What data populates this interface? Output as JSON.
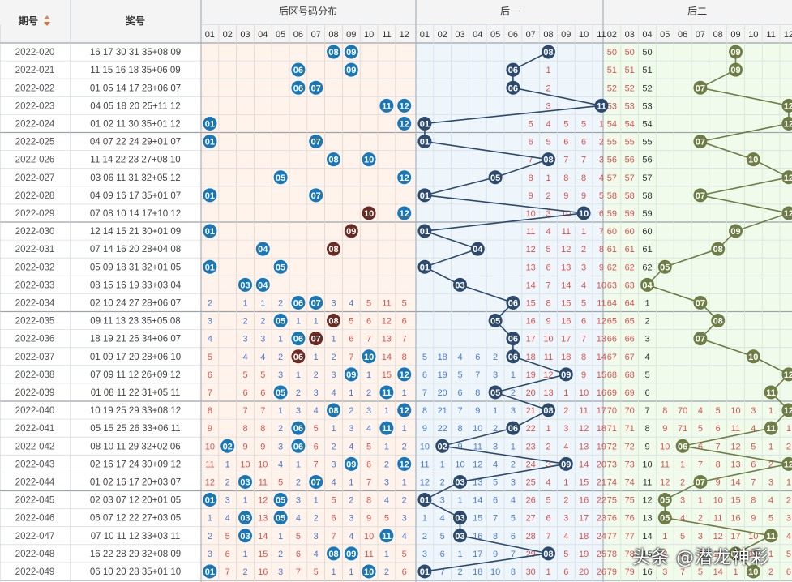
{
  "header": {
    "col_period": "期号",
    "col_numbers": "奖号",
    "group_back": "后区号码分布",
    "group_h1": "后一",
    "group_h2": "后二"
  },
  "back_labels": [
    "01",
    "02",
    "03",
    "04",
    "05",
    "06",
    "07",
    "08",
    "09",
    "10",
    "11",
    "12"
  ],
  "h1_labels": [
    "01",
    "02",
    "03",
    "04",
    "05",
    "06",
    "07",
    "08",
    "09",
    "10",
    "11"
  ],
  "h2_labels": [
    "02",
    "03",
    "04",
    "05",
    "06",
    "07",
    "08",
    "09",
    "10",
    "11",
    "12"
  ],
  "watermark": "头条 @潜龙神彩",
  "colors": {
    "ball_blue": "#1777b8",
    "ball_dark": "#2c4a6e",
    "ball_maroon": "#6b2a22",
    "ball_olive": "#6e7d44",
    "line_h1": "#2c4a6e",
    "line_h2": "#6e7d44",
    "miss_red": "#d9534f",
    "miss_blue": "#4a7bd1",
    "bg_back": "#fff3ec",
    "bg_h1": "#eef6fb",
    "bg_h2": "#f1fbec"
  },
  "chart_data": {
    "type": "table",
    "periods": [
      "2022-020",
      "2022-021",
      "2022-022",
      "2022-023",
      "2022-024",
      "2022-025",
      "2022-026",
      "2022-027",
      "2022-028",
      "2022-029",
      "2022-030",
      "2022-031",
      "2022-032",
      "2022-033",
      "2022-034",
      "2022-035",
      "2022-036",
      "2022-037",
      "2022-038",
      "2022-039",
      "2022-040",
      "2022-041",
      "2022-042",
      "2022-043",
      "2022-044",
      "2022-045",
      "2022-046",
      "2022-047",
      "2022-048",
      "2022-049"
    ],
    "draws": [
      "16 17 30 31 35+08 09",
      "11 15 16 18 35+06 09",
      "01 05 14 17 28+06 07",
      "04 05 18 20 25+11 12",
      "01 02 11 30 35+01 12",
      "04 07 22 24 29+01 07",
      "11 14 22 23 27+08 10",
      "03 06 11 31 32+05 12",
      "04 09 16 17 35+01 07",
      "07 08 10 14 17+10 12",
      "12 14 15 21 30+01 09",
      "07 14 16 20 28+04 08",
      "05 09 18 31 32+01 05",
      "08 15 16 19 33+03 04",
      "02 10 24 27 28+06 07",
      "09 11 13 23 35+05 08",
      "18 19 21 26 34+06 07",
      "01 09 17 20 28+06 10",
      "07 09 11 12 26+09 12",
      "01 08 11 22 31+05 11",
      "10 19 25 29 33+08 12",
      "05 15 25 26 33+06 11",
      "08 10 11 29 32+02 06",
      "02 16 17 24 30+09 12",
      "01 02 16 17 20+03 07",
      "02 03 07 12 20+01 05",
      "06 07 12 22 27+03 05",
      "07 10 11 12 33+03 11",
      "16 22 28 29 32+08 09",
      "06 10 20 28 35+01 10"
    ],
    "back_pairs": [
      [
        8,
        9
      ],
      [
        6,
        9
      ],
      [
        6,
        7
      ],
      [
        11,
        12
      ],
      [
        1,
        12
      ],
      [
        1,
        7
      ],
      [
        8,
        10
      ],
      [
        5,
        12
      ],
      [
        1,
        7
      ],
      [
        10,
        12
      ],
      [
        1,
        9
      ],
      [
        4,
        8
      ],
      [
        1,
        5
      ],
      [
        3,
        4
      ],
      [
        6,
        7
      ],
      [
        5,
        8
      ],
      [
        6,
        7
      ],
      [
        6,
        10
      ],
      [
        9,
        12
      ],
      [
        5,
        11
      ],
      [
        8,
        12
      ],
      [
        6,
        11
      ],
      [
        2,
        6
      ],
      [
        9,
        12
      ],
      [
        3,
        7
      ],
      [
        1,
        5
      ],
      [
        3,
        5
      ],
      [
        3,
        11
      ],
      [
        8,
        9
      ],
      [
        1,
        10
      ]
    ],
    "back_one_hit": [
      8,
      6,
      6,
      11,
      1,
      1,
      8,
      5,
      1,
      10,
      1,
      4,
      1,
      3,
      6,
      5,
      6,
      6,
      9,
      5,
      8,
      6,
      2,
      9,
      3,
      1,
      3,
      3,
      8,
      1
    ],
    "back_two_hit": [
      9,
      9,
      7,
      12,
      12,
      7,
      10,
      12,
      7,
      12,
      9,
      8,
      5,
      4,
      7,
      8,
      7,
      10,
      12,
      11,
      12,
      11,
      6,
      12,
      7,
      5,
      5,
      11,
      9,
      10
    ]
  }
}
